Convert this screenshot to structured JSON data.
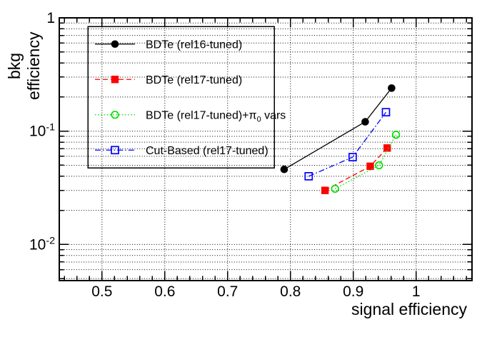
{
  "chart_data": {
    "type": "line",
    "title": "",
    "xlabel": "signal efficiency",
    "ylabel": "bkg efficiency",
    "background": "#ffffff",
    "frame_color": "#000000",
    "grid": {
      "color": "#000000",
      "style": "dotted",
      "x": "major",
      "y": "all-log-minor"
    },
    "x_axis": {
      "min": 0.432,
      "max": 1.089,
      "ticks": [
        0.5,
        0.6,
        0.7,
        0.8,
        0.9,
        1
      ],
      "tick_labels": [
        "0.5",
        "0.6",
        "0.7",
        "0.8",
        "0.9",
        "1"
      ],
      "minor_tick_step": 0.02
    },
    "y_axis": {
      "scale": "log",
      "min": 0.0048,
      "max": 1,
      "ticks": [
        1,
        0.1,
        0.01
      ],
      "tick_labels": [
        "1",
        "10^{-1}",
        "10^{-2}"
      ]
    },
    "legend": {
      "position": "top-left",
      "entries": [
        "BDTe (rel16-tuned)",
        "BDTe (rel17-tuned)",
        "BDTe (rel17-tuned)+π_{0} vars",
        "Cut-Based (rel17-tuned)"
      ]
    },
    "series": [
      {
        "name": "BDTe (rel16-tuned)",
        "color": "#000000",
        "marker": "filled-circle",
        "line": "solid",
        "points": [
          [
            0.79,
            0.046
          ],
          [
            0.919,
            0.121
          ],
          [
            0.961,
            0.24
          ]
        ]
      },
      {
        "name": "BDTe (rel17-tuned)",
        "color": "#ff0000",
        "marker": "filled-square",
        "line": "dashed",
        "points": [
          [
            0.855,
            0.03
          ],
          [
            0.927,
            0.049
          ],
          [
            0.954,
            0.071
          ]
        ]
      },
      {
        "name": "BDTe (rel17-tuned)+π_{0} vars",
        "color": "#00e000",
        "marker": "open-circle",
        "line": "dotted",
        "points": [
          [
            0.871,
            0.031
          ],
          [
            0.941,
            0.05
          ],
          [
            0.968,
            0.093
          ]
        ]
      },
      {
        "name": "Cut-Based (rel17-tuned)",
        "color": "#0000ff",
        "marker": "open-square",
        "line": "dash-dot",
        "points": [
          [
            0.829,
            0.04
          ],
          [
            0.899,
            0.059
          ],
          [
            0.952,
            0.147
          ]
        ]
      }
    ]
  }
}
